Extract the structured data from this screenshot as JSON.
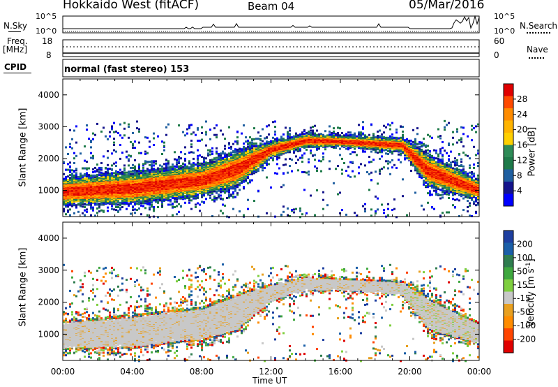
{
  "header": {
    "site": "Hokkaido West (fitACF)",
    "beam": "Beam 04",
    "date": "05/Mar/2016"
  },
  "params": {
    "nsky_label": "N.Sky",
    "nsky_ticks": [
      "10^5",
      "10^0"
    ],
    "nsearch_label": "N.Search",
    "freq_label_1": "Freq.",
    "freq_label_2": "[MHz]",
    "freq_ticks": [
      "18",
      "8"
    ],
    "nave_label": "Nave",
    "nave_ticks": [
      "60",
      "0"
    ],
    "cpid_label": "CPID",
    "cpid_value": "normal (fast stereo) 153"
  },
  "chart_data": [
    {
      "type": "heatmap",
      "title": "",
      "quantity": "Power",
      "ylabel": "Slant Range [km]",
      "xlabel": "Time UT",
      "colorbar_label": "Power [dB]",
      "colorbar_ticks": [
        "28",
        "24",
        "20",
        "16",
        "12",
        "8",
        "4"
      ],
      "colorbar_colors": [
        "#e00000",
        "#ff4a00",
        "#ff8c00",
        "#ffb400",
        "#ffd000",
        "#2e8b57",
        "#1e7a4a",
        "#1f5fa0",
        "#14148c",
        "#0000ff"
      ],
      "y_ticks": [
        "4000",
        "3000",
        "2000",
        "1000"
      ],
      "ylim": [
        180,
        4500
      ],
      "x_ticks": [
        "00:00",
        "04:00",
        "08:00",
        "12:00",
        "16:00",
        "20:00",
        "00:00"
      ],
      "xlim_hours": [
        0,
        24
      ],
      "main_echo_band_km": [
        {
          "t": 0,
          "low": 700,
          "high": 1300
        },
        {
          "t": 4,
          "low": 750,
          "high": 1450
        },
        {
          "t": 8,
          "low": 1000,
          "high": 1700
        },
        {
          "t": 10,
          "low": 1300,
          "high": 2100
        },
        {
          "t": 12,
          "low": 2150,
          "high": 2500
        },
        {
          "t": 14,
          "low": 2450,
          "high": 2750
        },
        {
          "t": 16,
          "low": 2450,
          "high": 2700
        },
        {
          "t": 19.5,
          "low": 2300,
          "high": 2600
        },
        {
          "t": 21,
          "low": 1300,
          "high": 2000
        },
        {
          "t": 24,
          "low": 800,
          "high": 1250
        }
      ]
    },
    {
      "type": "heatmap",
      "title": "",
      "quantity": "Velocity",
      "ylabel": "Slant Range [km]",
      "xlabel": "Time UT",
      "colorbar_label": "Velocity [m s^-1]",
      "colorbar_ticks": [
        "200",
        "100",
        "50",
        "15",
        "-15",
        "-50",
        "-100",
        "-200"
      ],
      "colorbar_colors": [
        "#1e3fa0",
        "#1b5fa8",
        "#2f7d4f",
        "#3fa83f",
        "#7fcf3f",
        "#c8c8c8",
        "#e8a020",
        "#ff8c00",
        "#ff4500",
        "#e00000"
      ],
      "y_ticks": [
        "4000",
        "3000",
        "2000",
        "1000"
      ],
      "ylim": [
        180,
        4500
      ],
      "x_ticks": [
        "00:00",
        "04:00",
        "08:00",
        "12:00",
        "16:00",
        "20:00",
        "00:00"
      ],
      "xlim_hours": [
        0,
        24
      ]
    }
  ],
  "axes": {
    "xlabel": "Time UT",
    "ylabel": "Slant Range [km]",
    "power_cbar": "Power [dB]",
    "velocity_cbar": "Velocity [m s",
    "velocity_cbar_exp": "-1",
    "velocity_cbar_end": "]"
  }
}
